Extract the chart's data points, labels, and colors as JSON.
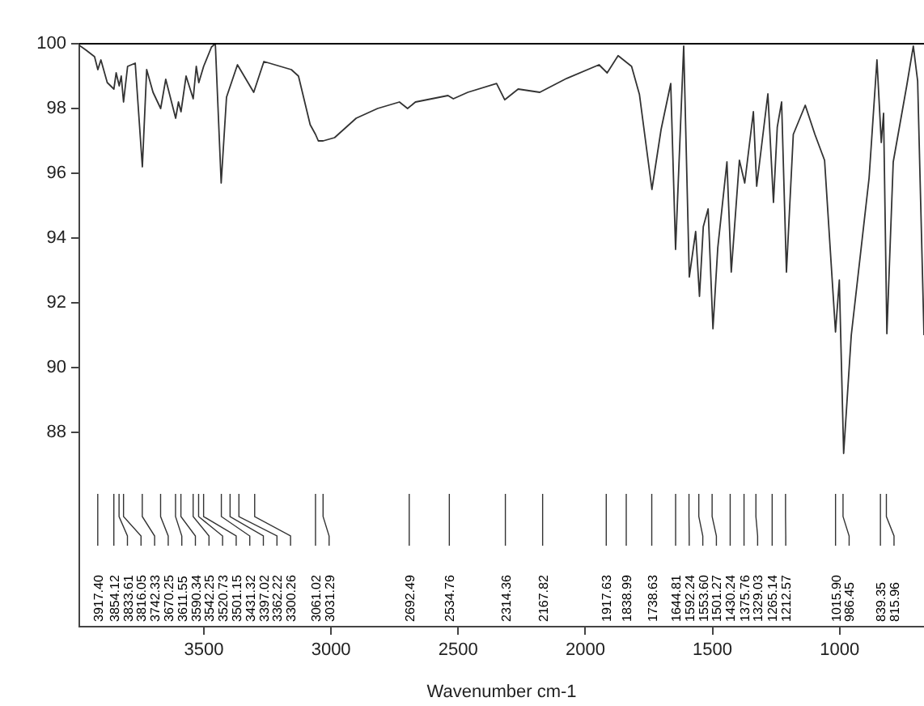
{
  "chart_data": {
    "type": "line",
    "xlabel": "Wavenumber cm-1",
    "marker": "none",
    "color": "#333333",
    "xlim": [
      3990,
      668
    ],
    "xticks": [
      3500,
      3000,
      2500,
      2000,
      1500,
      1000
    ],
    "ylim": [
      82,
      100
    ],
    "yticks": [
      88,
      90,
      92,
      94,
      96,
      98,
      100
    ],
    "x": [
      3990,
      3963,
      3930,
      3917,
      3905,
      3880,
      3854,
      3845,
      3833,
      3825,
      3816,
      3800,
      3770,
      3742,
      3725,
      3700,
      3670,
      3650,
      3611,
      3600,
      3590,
      3570,
      3542,
      3530,
      3520,
      3501,
      3470,
      3455,
      3432,
      3411,
      3368,
      3304,
      3264,
      3156,
      3128,
      3082,
      3061,
      3050,
      3031,
      2986,
      2901,
      2817,
      2731,
      2699,
      2668,
      2540,
      2519,
      2462,
      2349,
      2317,
      2264,
      2179,
      2073,
      1946,
      1914,
      1871,
      1818,
      1787,
      1738,
      1702,
      1664,
      1645,
      1613,
      1591,
      1566,
      1551,
      1536,
      1517,
      1498,
      1479,
      1443,
      1426,
      1394,
      1373,
      1339,
      1326,
      1282,
      1260,
      1245,
      1228,
      1209,
      1182,
      1135,
      1097,
      1059,
      1016,
      1001,
      984,
      954,
      884,
      853,
      836,
      827,
      814,
      789,
      736,
      710,
      693,
      668
    ],
    "values": [
      99.95,
      99.8,
      99.6,
      99.2,
      99.5,
      98.8,
      98.6,
      99.1,
      98.7,
      99.0,
      98.2,
      99.3,
      99.4,
      96.2,
      99.2,
      98.5,
      98.0,
      98.9,
      97.7,
      98.2,
      97.9,
      99.0,
      98.3,
      99.3,
      98.8,
      99.3,
      99.9,
      100,
      95.7,
      98.35,
      99.35,
      98.5,
      99.45,
      99.2,
      99.0,
      97.5,
      97.2,
      97.0,
      97.0,
      97.1,
      97.7,
      98.0,
      98.2,
      98.0,
      98.2,
      98.4,
      98.3,
      98.5,
      98.77,
      98.27,
      98.6,
      98.5,
      98.93,
      99.35,
      99.1,
      99.63,
      99.3,
      98.43,
      95.5,
      97.35,
      98.77,
      93.65,
      99.93,
      92.8,
      94.2,
      92.2,
      94.35,
      94.9,
      91.2,
      93.7,
      96.35,
      92.95,
      96.4,
      95.7,
      97.9,
      95.6,
      98.45,
      95.1,
      97.43,
      98.2,
      92.95,
      97.2,
      98.1,
      97.2,
      96.4,
      91.1,
      92.7,
      87.35,
      91.0,
      95.85,
      99.5,
      96.95,
      97.85,
      91.05,
      96.35,
      98.7,
      99.93,
      98.85,
      91.0
    ],
    "ref_lines": [
      {
        "axis": "y",
        "value": 100,
        "color": "#000000"
      }
    ],
    "annotations": [
      "3917.40",
      "3854.12",
      "3833.61",
      "3816.05",
      "3742.33",
      "3670.25",
      "3611.55",
      "3590.34",
      "3542.25",
      "3520.73",
      "3501.15",
      "3431.32",
      "3397.02",
      "3362.22",
      "3300.26",
      "3061.02",
      "3031.29",
      "2692.49",
      "2534.76",
      "2314.36",
      "2167.82",
      "1917.63",
      "1838.99",
      "1738.63",
      "1644.81",
      "1592.24",
      "1553.60",
      "1501.27",
      "1430.24",
      "1375.76",
      "1329.03",
      "1265.14",
      "1212.57",
      "1015.90",
      "986.45",
      "839.35",
      "815.96"
    ]
  }
}
